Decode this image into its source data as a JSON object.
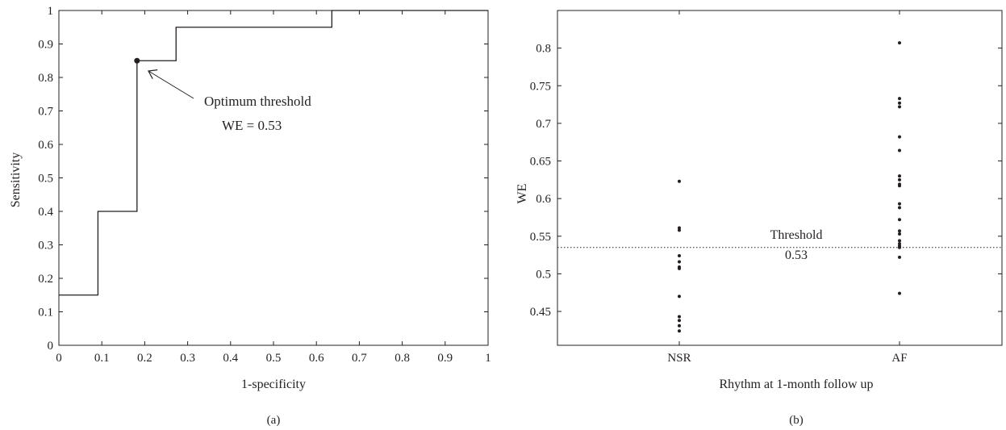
{
  "chart_data": [
    {
      "type": "line",
      "panel_label": "(a)",
      "xlabel": "1-specificity",
      "ylabel": "Sensitivity",
      "xlim": [
        0,
        1
      ],
      "ylim": [
        0,
        1
      ],
      "x_ticks": [
        "0",
        "0.1",
        "0.2",
        "0.3",
        "0.4",
        "0.5",
        "0.6",
        "0.7",
        "0.8",
        "0.9",
        "1"
      ],
      "y_ticks": [
        "0",
        "0.1",
        "0.2",
        "0.3",
        "0.4",
        "0.5",
        "0.6",
        "0.7",
        "0.8",
        "0.9",
        "1"
      ],
      "series": [
        {
          "x": [
            0,
            0.091,
            0.091,
            0.182,
            0.182,
            0.273,
            0.273,
            0.636,
            0.636,
            1
          ],
          "y": [
            0.15,
            0.15,
            0.4,
            0.4,
            0.85,
            0.85,
            0.95,
            0.95,
            1.0,
            1.0
          ]
        }
      ],
      "highlight_point": {
        "x": 0.182,
        "y": 0.85
      },
      "annotation": {
        "line1": "Optimum threshold",
        "line2": "WE = 0.53"
      },
      "line_color": "#231f20"
    },
    {
      "type": "scatter",
      "panel_label": "(b)",
      "xlabel": "Rhythm at 1-month follow up",
      "ylabel": "WE",
      "categories": [
        "NSR",
        "AF"
      ],
      "ylim": [
        0.405,
        0.85
      ],
      "y_ticks": [
        "0.45",
        "0.5",
        "0.55",
        "0.6",
        "0.65",
        "0.7",
        "0.75",
        "0.8"
      ],
      "series": [
        {
          "category": "NSR",
          "values": [
            0.623,
            0.561,
            0.558,
            0.524,
            0.516,
            0.509,
            0.507,
            0.47,
            0.443,
            0.438,
            0.431,
            0.424
          ]
        },
        {
          "category": "AF",
          "values": [
            0.807,
            0.733,
            0.727,
            0.722,
            0.682,
            0.664,
            0.63,
            0.625,
            0.619,
            0.617,
            0.593,
            0.588,
            0.572,
            0.557,
            0.553,
            0.544,
            0.54,
            0.537,
            0.535,
            0.522,
            0.474
          ]
        }
      ],
      "threshold": {
        "value": 0.535,
        "label": "Threshold",
        "value_label": "0.53"
      },
      "point_color": "#231f20"
    }
  ]
}
